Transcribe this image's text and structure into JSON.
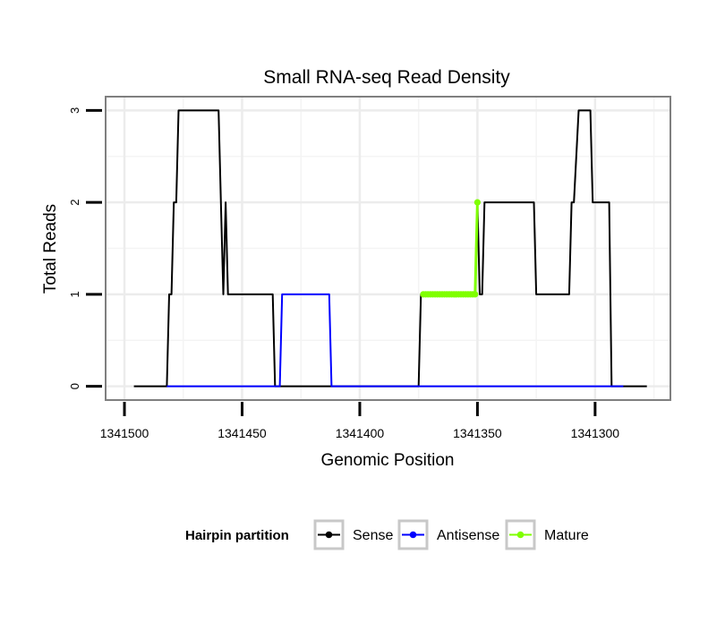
{
  "chart_data": {
    "type": "line",
    "title": "Small RNA-seq Read Density",
    "xlabel": "Genomic Position",
    "ylabel": "Total Reads",
    "x_reversed": true,
    "xlim": [
      1341508,
      1341268
    ],
    "ylim": [
      -0.15,
      3.15
    ],
    "x_ticks": [
      1341500,
      1341450,
      1341400,
      1341350,
      1341300
    ],
    "x_tick_labels": [
      "1341500",
      "1341450",
      "1341400",
      "1341350",
      "1341300"
    ],
    "y_ticks": [
      0,
      1,
      2,
      3
    ],
    "y_tick_labels": [
      "0",
      "1",
      "2",
      "3"
    ],
    "grid": true,
    "legend": {
      "title": "Hairpin partition",
      "position": "bottom",
      "entries": [
        "Sense",
        "Antisense",
        "Mature"
      ]
    },
    "series": [
      {
        "name": "Sense",
        "color": "#000000",
        "x": [
          1341496,
          1341482,
          1341481,
          1341480,
          1341479,
          1341478,
          1341477,
          1341476,
          1341460,
          1341459,
          1341458,
          1341457,
          1341456,
          1341454,
          1341437,
          1341436,
          1341435,
          1341425,
          1341424,
          1341375,
          1341374,
          1341373,
          1341372,
          1341351,
          1341350,
          1341349,
          1341348,
          1341347,
          1341326,
          1341325,
          1341311,
          1341310,
          1341309,
          1341307,
          1341306,
          1341302,
          1341301,
          1341294,
          1341293,
          1341289,
          1341288,
          1341278
        ],
        "values": [
          0,
          0,
          1,
          1,
          2,
          2,
          3,
          3,
          3,
          2,
          1,
          2,
          1,
          1,
          1,
          0,
          0,
          0,
          0,
          0,
          1,
          1,
          1,
          1,
          2,
          1,
          1,
          2,
          2,
          1,
          1,
          2,
          2,
          3,
          3,
          3,
          2,
          2,
          0,
          0,
          0,
          0
        ]
      },
      {
        "name": "Antisense",
        "color": "#0000ff",
        "x": [
          1341482,
          1341436,
          1341434,
          1341433,
          1341413,
          1341412,
          1341411,
          1341288
        ],
        "values": [
          0,
          0,
          0,
          1,
          1,
          0,
          0,
          0
        ]
      },
      {
        "name": "Mature",
        "color": "#7fff00",
        "x": [
          1341373,
          1341372,
          1341371,
          1341370,
          1341369,
          1341368,
          1341367,
          1341366,
          1341365,
          1341364,
          1341363,
          1341362,
          1341361,
          1341360,
          1341359,
          1341358,
          1341357,
          1341356,
          1341355,
          1341354,
          1341353,
          1341352,
          1341351,
          1341350
        ],
        "values": [
          1,
          1,
          1,
          1,
          1,
          1,
          1,
          1,
          1,
          1,
          1,
          1,
          1,
          1,
          1,
          1,
          1,
          1,
          1,
          1,
          1,
          1,
          1,
          2
        ]
      }
    ]
  }
}
